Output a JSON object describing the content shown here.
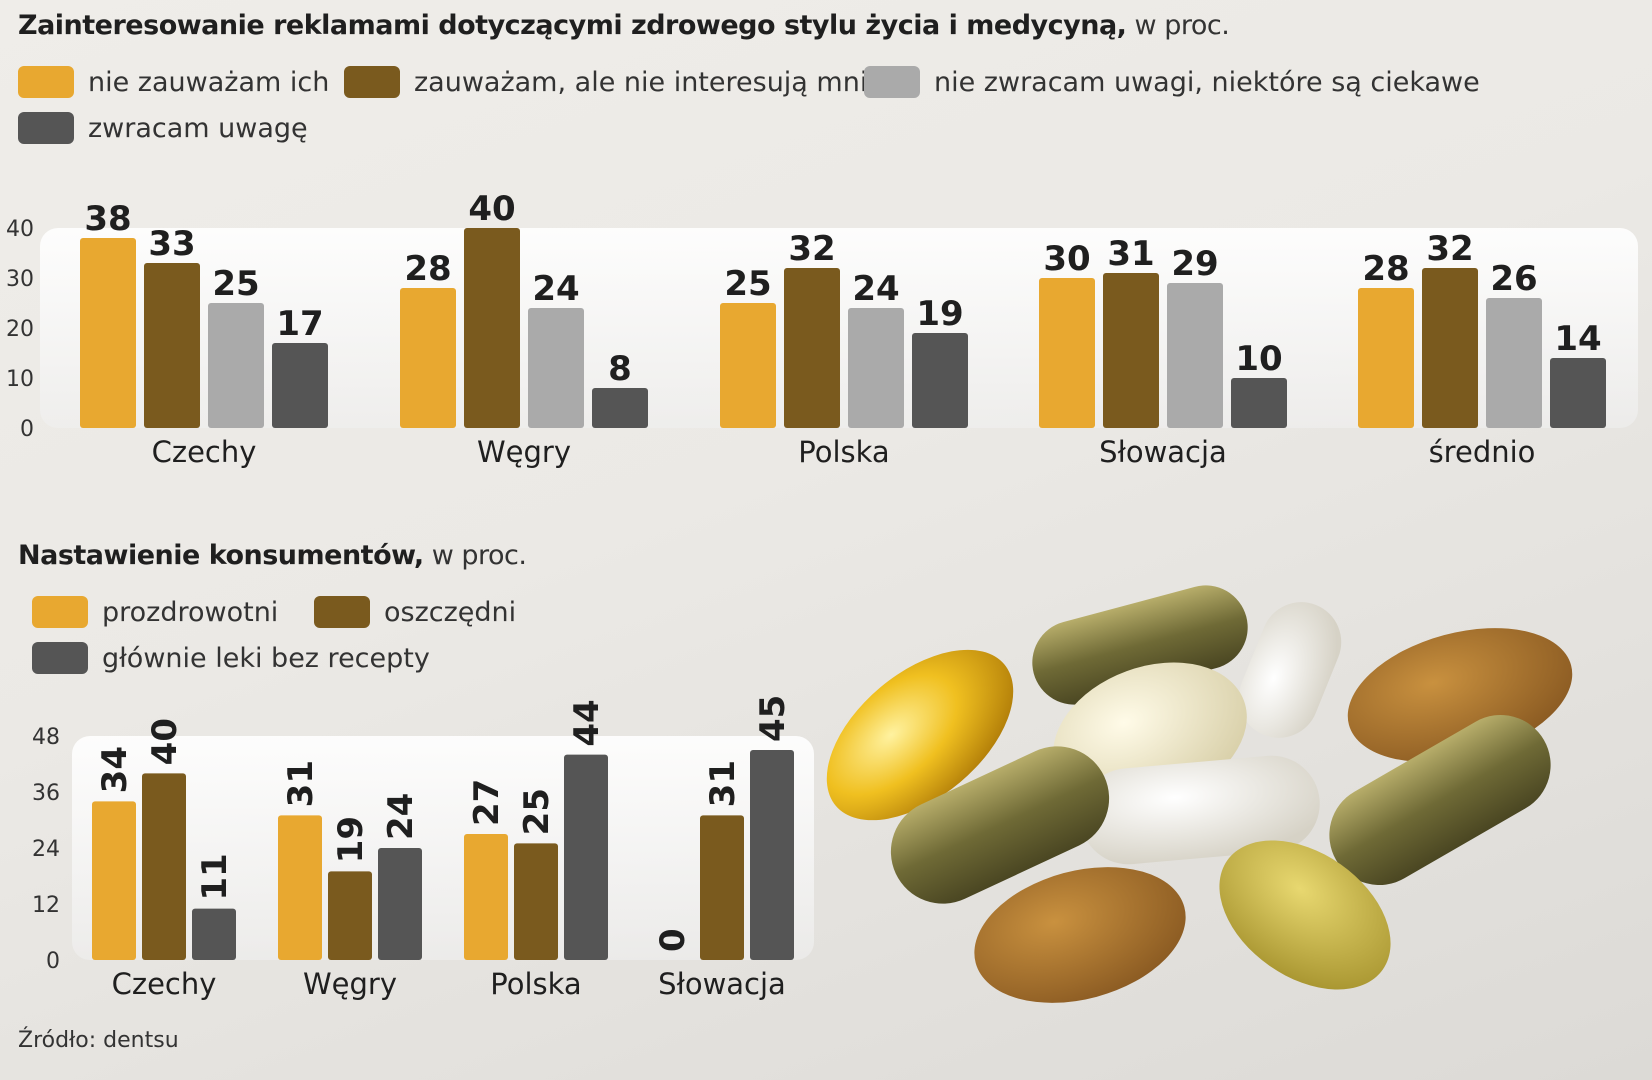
{
  "colors": {
    "c1": "#e8a830",
    "c2": "#7a5a1e",
    "c3": "#aaaaaa",
    "c4": "#555555"
  },
  "chart1": {
    "title_bold": "Zainteresowanie reklamami dotyczącymi zdrowego stylu życia i medycyną,",
    "title_unit": "w proc.",
    "legend": [
      "nie zauważam ich",
      "zauważam, ale nie interesują mnie",
      "nie zwracam uwagi, niektóre są ciekawe",
      "zwracam uwagę"
    ]
  },
  "chart2": {
    "title_bold": "Nastawienie konsumentów,",
    "title_unit": "w proc.",
    "legend": [
      "prozdrowotni",
      "oszczędni",
      "głównie leki bez recepty"
    ]
  },
  "source": "Źródło: dentsu",
  "chart_data": [
    {
      "type": "bar",
      "categories": [
        "Czechy",
        "Węgry",
        "Polska",
        "Słowacja",
        "średnio"
      ],
      "series": [
        {
          "name": "nie zauważam ich",
          "values": [
            38,
            28,
            25,
            30,
            28
          ]
        },
        {
          "name": "zauważam, ale nie interesują mnie",
          "values": [
            33,
            40,
            32,
            31,
            32
          ]
        },
        {
          "name": "nie zwracam uwagi, niektóre są ciekawe",
          "values": [
            25,
            24,
            24,
            29,
            26
          ]
        },
        {
          "name": "zwracam uwagę",
          "values": [
            17,
            8,
            19,
            10,
            14
          ]
        }
      ],
      "yticks": [
        0,
        10,
        20,
        30,
        40
      ],
      "ylim": [
        0,
        40
      ],
      "data_labels": true
    },
    {
      "type": "bar",
      "categories": [
        "Czechy",
        "Węgry",
        "Polska",
        "Słowacja"
      ],
      "series": [
        {
          "name": "prozdrowotni",
          "values": [
            34,
            31,
            27,
            0
          ]
        },
        {
          "name": "oszczędni",
          "values": [
            40,
            19,
            25,
            31
          ]
        },
        {
          "name": "głównie leki bez recepty",
          "values": [
            11,
            24,
            44,
            45
          ]
        }
      ],
      "yticks": [
        0,
        12,
        24,
        36,
        48
      ],
      "ylim": [
        0,
        48
      ],
      "data_labels": true,
      "data_label_orientation": "vertical"
    }
  ]
}
